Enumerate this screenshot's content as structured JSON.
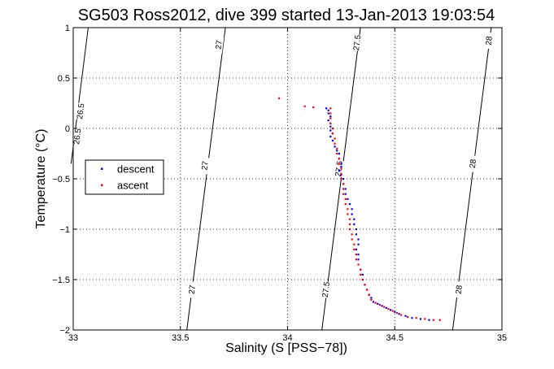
{
  "chart_data": {
    "type": "scatter",
    "title": "SG503 Ross2012, dive 399 started 13-Jan-2013 19:03:54",
    "xlabel": "Salinity (S [PSS−78])",
    "ylabel": "Temperature (°C)",
    "xlim": [
      33,
      35
    ],
    "ylim": [
      -2,
      1
    ],
    "xticks": [
      {
        "value": 33,
        "label": "33"
      },
      {
        "value": 33.5,
        "label": "33.5"
      },
      {
        "value": 34,
        "label": "34"
      },
      {
        "value": 34.5,
        "label": "34.5"
      },
      {
        "value": 35,
        "label": "35"
      }
    ],
    "yticks": [
      {
        "value": 1,
        "label": "1"
      },
      {
        "value": 0.5,
        "label": "0.5"
      },
      {
        "value": 0,
        "label": "0"
      },
      {
        "value": -0.5,
        "label": "−0.5"
      },
      {
        "value": -1,
        "label": "−1"
      },
      {
        "value": -1.5,
        "label": "−1.5"
      },
      {
        "value": -2,
        "label": "−2"
      }
    ],
    "grid": true,
    "legend": {
      "position": "left",
      "entries": [
        "descent",
        "ascent"
      ]
    },
    "contours": [
      {
        "label": "26.5",
        "points": [
          [
            33.07,
            1.0
          ],
          [
            32.99,
            -0.35
          ]
        ],
        "label_positions": [
          [
            33.02,
            -0.08
          ],
          [
            33.035,
            0.17
          ]
        ]
      },
      {
        "label": "27",
        "points": [
          [
            33.71,
            1.0
          ],
          [
            33.53,
            -2.0
          ]
        ],
        "label_positions": [
          [
            33.68,
            0.83
          ],
          [
            33.615,
            -0.37
          ],
          [
            33.555,
            -1.6
          ]
        ]
      },
      {
        "label": "27.5",
        "points": [
          [
            34.34,
            1.0
          ],
          [
            34.16,
            -2.0
          ]
        ],
        "label_positions": [
          [
            34.325,
            0.85
          ],
          [
            34.24,
            -0.4
          ],
          [
            34.18,
            -1.6
          ]
        ]
      },
      {
        "label": "28",
        "points": [
          [
            34.95,
            1.0
          ],
          [
            34.77,
            -2.0
          ]
        ],
        "label_positions": [
          [
            34.94,
            0.87
          ],
          [
            34.865,
            -0.35
          ],
          [
            34.8,
            -1.6
          ]
        ]
      }
    ],
    "series": [
      {
        "name": "descent",
        "color": "#0000ff",
        "marker": "dot",
        "points": [
          [
            34.18,
            0.2
          ],
          [
            34.19,
            0.18
          ],
          [
            34.19,
            0.15
          ],
          [
            34.2,
            0.12
          ],
          [
            34.19,
            0.08
          ],
          [
            34.2,
            0.05
          ],
          [
            34.2,
            0.02
          ],
          [
            34.2,
            -0.02
          ],
          [
            34.21,
            -0.05
          ],
          [
            34.2,
            -0.08
          ],
          [
            34.21,
            -0.12
          ],
          [
            34.22,
            -0.18
          ],
          [
            34.23,
            -0.22
          ],
          [
            34.24,
            -0.25
          ],
          [
            34.24,
            -0.3
          ],
          [
            34.25,
            -0.35
          ],
          [
            34.25,
            -0.38
          ],
          [
            34.24,
            -0.42
          ],
          [
            34.25,
            -0.46
          ],
          [
            34.26,
            -0.5
          ],
          [
            34.26,
            -0.55
          ],
          [
            34.27,
            -0.6
          ],
          [
            34.27,
            -0.65
          ],
          [
            34.28,
            -0.7
          ],
          [
            34.29,
            -0.75
          ],
          [
            34.3,
            -0.8
          ],
          [
            34.3,
            -0.85
          ],
          [
            34.31,
            -0.9
          ],
          [
            34.31,
            -0.95
          ],
          [
            34.32,
            -1.0
          ],
          [
            34.32,
            -1.05
          ],
          [
            34.33,
            -1.1
          ],
          [
            34.33,
            -1.15
          ],
          [
            34.32,
            -1.2
          ],
          [
            34.33,
            -1.25
          ],
          [
            34.33,
            -1.3
          ],
          [
            34.34,
            -1.4
          ],
          [
            34.35,
            -1.45
          ],
          [
            34.35,
            -1.5
          ],
          [
            34.36,
            -1.55
          ],
          [
            34.37,
            -1.6
          ],
          [
            34.38,
            -1.65
          ],
          [
            34.39,
            -1.68
          ],
          [
            34.4,
            -1.72
          ],
          [
            34.42,
            -1.74
          ],
          [
            34.44,
            -1.76
          ],
          [
            34.46,
            -1.78
          ],
          [
            34.48,
            -1.8
          ],
          [
            34.5,
            -1.82
          ],
          [
            34.52,
            -1.84
          ],
          [
            34.55,
            -1.86
          ],
          [
            34.58,
            -1.88
          ],
          [
            34.62,
            -1.89
          ],
          [
            34.66,
            -1.9
          ]
        ]
      },
      {
        "name": "ascent",
        "color": "#ff0000",
        "marker": "dot",
        "points": [
          [
            33.96,
            0.3
          ],
          [
            34.08,
            0.22
          ],
          [
            34.12,
            0.21
          ],
          [
            34.2,
            0.2
          ],
          [
            34.2,
            0.15
          ],
          [
            34.2,
            0.1
          ],
          [
            34.2,
            0.05
          ],
          [
            34.21,
            0.0
          ],
          [
            34.21,
            -0.05
          ],
          [
            34.22,
            -0.1
          ],
          [
            34.22,
            -0.15
          ],
          [
            34.23,
            -0.2
          ],
          [
            34.23,
            -0.25
          ],
          [
            34.24,
            -0.3
          ],
          [
            34.24,
            -0.35
          ],
          [
            34.25,
            -0.4
          ],
          [
            34.25,
            -0.45
          ],
          [
            34.25,
            -0.5
          ],
          [
            34.26,
            -0.55
          ],
          [
            34.26,
            -0.6
          ],
          [
            34.26,
            -0.65
          ],
          [
            34.27,
            -0.7
          ],
          [
            34.27,
            -0.75
          ],
          [
            34.28,
            -0.8
          ],
          [
            34.28,
            -0.85
          ],
          [
            34.29,
            -0.9
          ],
          [
            34.29,
            -0.95
          ],
          [
            34.29,
            -1.0
          ],
          [
            34.3,
            -1.05
          ],
          [
            34.3,
            -1.1
          ],
          [
            34.31,
            -1.15
          ],
          [
            34.31,
            -1.2
          ],
          [
            34.32,
            -1.25
          ],
          [
            34.32,
            -1.3
          ],
          [
            34.33,
            -1.35
          ],
          [
            34.34,
            -1.4
          ],
          [
            34.34,
            -1.45
          ],
          [
            34.35,
            -1.5
          ],
          [
            34.36,
            -1.55
          ],
          [
            34.37,
            -1.6
          ],
          [
            34.38,
            -1.65
          ],
          [
            34.39,
            -1.7
          ],
          [
            34.41,
            -1.73
          ],
          [
            34.43,
            -1.75
          ],
          [
            34.45,
            -1.77
          ],
          [
            34.47,
            -1.79
          ],
          [
            34.49,
            -1.81
          ],
          [
            34.51,
            -1.83
          ],
          [
            34.53,
            -1.85
          ],
          [
            34.56,
            -1.87
          ],
          [
            34.6,
            -1.88
          ],
          [
            34.64,
            -1.89
          ],
          [
            34.68,
            -1.9
          ],
          [
            34.71,
            -1.9
          ]
        ]
      }
    ]
  }
}
